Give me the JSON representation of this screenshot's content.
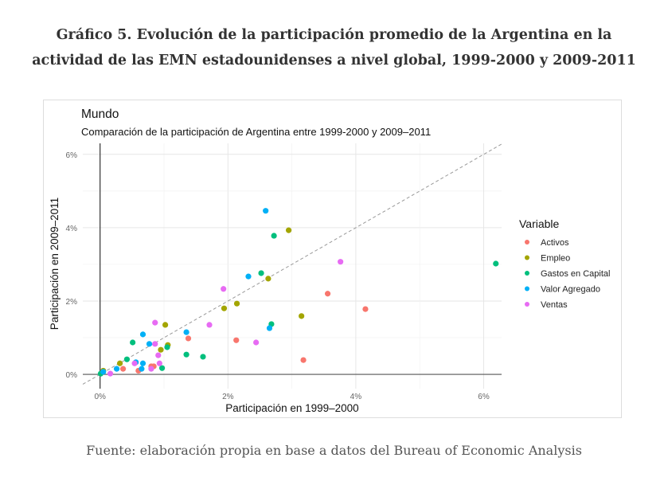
{
  "figure_title_line1": "Gráfico 5. Evolución de la participación promedio de la Argentina en la",
  "figure_title_line2": "actividad de las EMN estadounidenses a nivel global, 1999-2000 y 2009-2011",
  "caption": "Fuente: elaboración propia en base a datos del Bureau of Economic Analysis",
  "chart_data": {
    "type": "scatter",
    "title": "Mundo",
    "subtitle": "Comparación de la participación de Argentina entre 1999-2000 y 2009–2011",
    "xlabel": "Participación en 1999–2000",
    "ylabel": "Participación en 2009–2011",
    "xlim": [
      -0.27,
      6.28
    ],
    "ylim": [
      -0.39,
      6.3
    ],
    "xticks": [
      {
        "v": 0,
        "label": "0%"
      },
      {
        "v": 2,
        "label": "2%"
      },
      {
        "v": 4,
        "label": "4%"
      },
      {
        "v": 6,
        "label": "6%"
      }
    ],
    "yticks": [
      {
        "v": 0,
        "label": "0%"
      },
      {
        "v": 2,
        "label": "2%"
      },
      {
        "v": 4,
        "label": "4%"
      },
      {
        "v": 6,
        "label": "6%"
      }
    ],
    "grid": true,
    "reference_line": "y = x (dashed)",
    "legend_title": "Variable",
    "legend_position": "right",
    "series": [
      {
        "name": "Activos",
        "color": "#F8766D",
        "points": [
          [
            4.15,
            1.78
          ],
          [
            3.56,
            2.2
          ],
          [
            3.18,
            0.39
          ],
          [
            2.13,
            0.93
          ],
          [
            1.38,
            0.98
          ],
          [
            0.36,
            0.15
          ],
          [
            0.6,
            0.1
          ],
          [
            0.8,
            0.22
          ],
          [
            0.84,
            0.22
          ]
        ]
      },
      {
        "name": "Empleo",
        "color": "#A3A500",
        "points": [
          [
            2.95,
            3.93
          ],
          [
            2.63,
            2.61
          ],
          [
            2.14,
            1.93
          ],
          [
            1.94,
            1.8
          ],
          [
            3.15,
            1.59
          ],
          [
            1.02,
            1.35
          ],
          [
            1.06,
            0.8
          ],
          [
            0.95,
            0.67
          ],
          [
            0.31,
            0.3
          ],
          [
            0.05,
            0.1
          ]
        ]
      },
      {
        "name": "Gastos en Capital",
        "color": "#00BF7D",
        "points": [
          [
            6.19,
            3.02
          ],
          [
            2.72,
            3.78
          ],
          [
            2.52,
            2.76
          ],
          [
            2.68,
            1.37
          ],
          [
            0.51,
            0.87
          ],
          [
            0.42,
            0.41
          ],
          [
            1.05,
            0.74
          ],
          [
            1.35,
            0.54
          ],
          [
            1.61,
            0.48
          ],
          [
            0.97,
            0.17
          ],
          [
            0.01,
            0.02
          ]
        ]
      },
      {
        "name": "Valor Agregado",
        "color": "#00B0F6",
        "points": [
          [
            2.59,
            4.46
          ],
          [
            2.32,
            2.67
          ],
          [
            2.65,
            1.26
          ],
          [
            0.67,
            1.09
          ],
          [
            0.77,
            0.83
          ],
          [
            1.35,
            1.15
          ],
          [
            0.56,
            0.33
          ],
          [
            0.67,
            0.3
          ],
          [
            0.65,
            0.15
          ],
          [
            0.26,
            0.15
          ],
          [
            0.05,
            0.07
          ]
        ]
      },
      {
        "name": "Ventas",
        "color": "#E76BF3",
        "points": [
          [
            1.93,
            2.33
          ],
          [
            2.44,
            0.87
          ],
          [
            3.76,
            3.07
          ],
          [
            0.86,
            1.41
          ],
          [
            1.71,
            1.35
          ],
          [
            0.86,
            0.83
          ],
          [
            0.91,
            0.52
          ],
          [
            0.93,
            0.3
          ],
          [
            0.54,
            0.3
          ],
          [
            0.8,
            0.15
          ],
          [
            0.16,
            0.02
          ]
        ]
      }
    ]
  }
}
